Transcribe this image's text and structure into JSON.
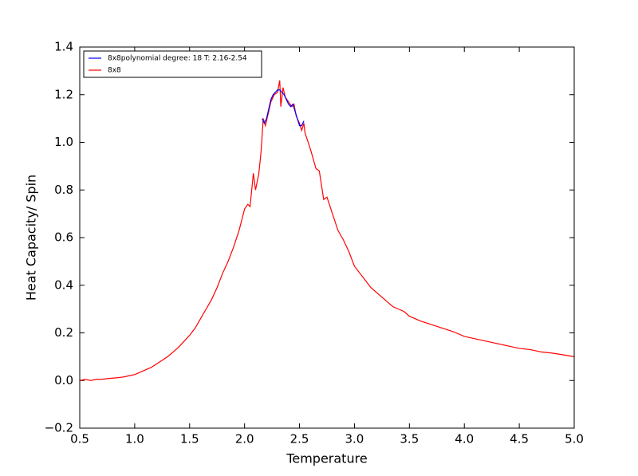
{
  "chart_data": {
    "type": "line",
    "xlabel": "Temperature",
    "ylabel": "Heat Capacity/ Spin",
    "xlim": [
      0.5,
      5.0
    ],
    "ylim": [
      -0.2,
      1.4
    ],
    "xticks": [
      0.5,
      {
        "value": 1,
        "label": "1.0"
      },
      1.5,
      {
        "value": 2,
        "label": "2.0"
      },
      2.5,
      {
        "value": 3,
        "label": "3.0"
      },
      3.5,
      {
        "value": 4,
        "label": "4.0"
      },
      4.5,
      {
        "value": 5,
        "label": "5.0"
      }
    ],
    "yticks": [
      {
        "value": -0.2,
        "label": "−0.2"
      },
      {
        "value": 0,
        "label": "0.0"
      },
      0.2,
      0.4,
      0.6,
      0.8,
      {
        "value": 1,
        "label": "1.0"
      },
      1.2,
      1.4
    ],
    "legend": "upper left",
    "series": [
      {
        "name": "8x8polynomial degree: 18 T: 2.16-2.54",
        "color": "#0000ff",
        "x": [
          2.16,
          2.18,
          2.2,
          2.22,
          2.24,
          2.26,
          2.28,
          2.3,
          2.32,
          2.34,
          2.36,
          2.38,
          2.4,
          2.42,
          2.44,
          2.46,
          2.48,
          2.5,
          2.52,
          2.54
        ],
        "values": [
          1.1,
          1.08,
          1.1,
          1.14,
          1.18,
          1.2,
          1.21,
          1.22,
          1.22,
          1.21,
          1.2,
          1.18,
          1.16,
          1.15,
          1.16,
          1.13,
          1.1,
          1.07,
          1.07,
          1.09
        ]
      },
      {
        "name": "8x8",
        "color": "#ff0000",
        "x": [
          0.5,
          0.55,
          0.6,
          0.65,
          0.7,
          0.75,
          0.8,
          0.85,
          0.9,
          0.95,
          1.0,
          1.05,
          1.1,
          1.15,
          1.2,
          1.25,
          1.3,
          1.35,
          1.4,
          1.45,
          1.5,
          1.55,
          1.6,
          1.65,
          1.7,
          1.75,
          1.8,
          1.85,
          1.9,
          1.95,
          2.0,
          2.03,
          2.05,
          2.08,
          2.1,
          2.13,
          2.15,
          2.17,
          2.19,
          2.21,
          2.24,
          2.27,
          2.3,
          2.32,
          2.33,
          2.35,
          2.37,
          2.4,
          2.43,
          2.45,
          2.47,
          2.5,
          2.52,
          2.54,
          2.55,
          2.6,
          2.65,
          2.68,
          2.7,
          2.72,
          2.75,
          2.8,
          2.85,
          2.9,
          2.95,
          3.0,
          3.05,
          3.1,
          3.15,
          3.2,
          3.25,
          3.3,
          3.35,
          3.4,
          3.45,
          3.5,
          3.6,
          3.7,
          3.8,
          3.9,
          4.0,
          4.1,
          4.2,
          4.3,
          4.4,
          4.5,
          4.6,
          4.7,
          4.8,
          4.9,
          5.0
        ],
        "values": [
          0.0,
          0.005,
          0.0,
          0.005,
          0.005,
          0.008,
          0.01,
          0.012,
          0.015,
          0.02,
          0.025,
          0.035,
          0.045,
          0.055,
          0.07,
          0.085,
          0.1,
          0.12,
          0.14,
          0.165,
          0.19,
          0.22,
          0.26,
          0.3,
          0.34,
          0.39,
          0.45,
          0.5,
          0.56,
          0.63,
          0.72,
          0.74,
          0.73,
          0.87,
          0.8,
          0.87,
          0.96,
          1.1,
          1.07,
          1.11,
          1.17,
          1.2,
          1.21,
          1.26,
          1.15,
          1.23,
          1.19,
          1.17,
          1.15,
          1.16,
          1.11,
          1.08,
          1.05,
          1.08,
          1.04,
          0.97,
          0.89,
          0.88,
          0.82,
          0.76,
          0.77,
          0.7,
          0.63,
          0.59,
          0.54,
          0.48,
          0.45,
          0.42,
          0.39,
          0.37,
          0.35,
          0.33,
          0.31,
          0.3,
          0.29,
          0.27,
          0.25,
          0.235,
          0.22,
          0.205,
          0.185,
          0.175,
          0.165,
          0.155,
          0.145,
          0.135,
          0.13,
          0.12,
          0.115,
          0.108,
          0.1
        ]
      }
    ]
  }
}
